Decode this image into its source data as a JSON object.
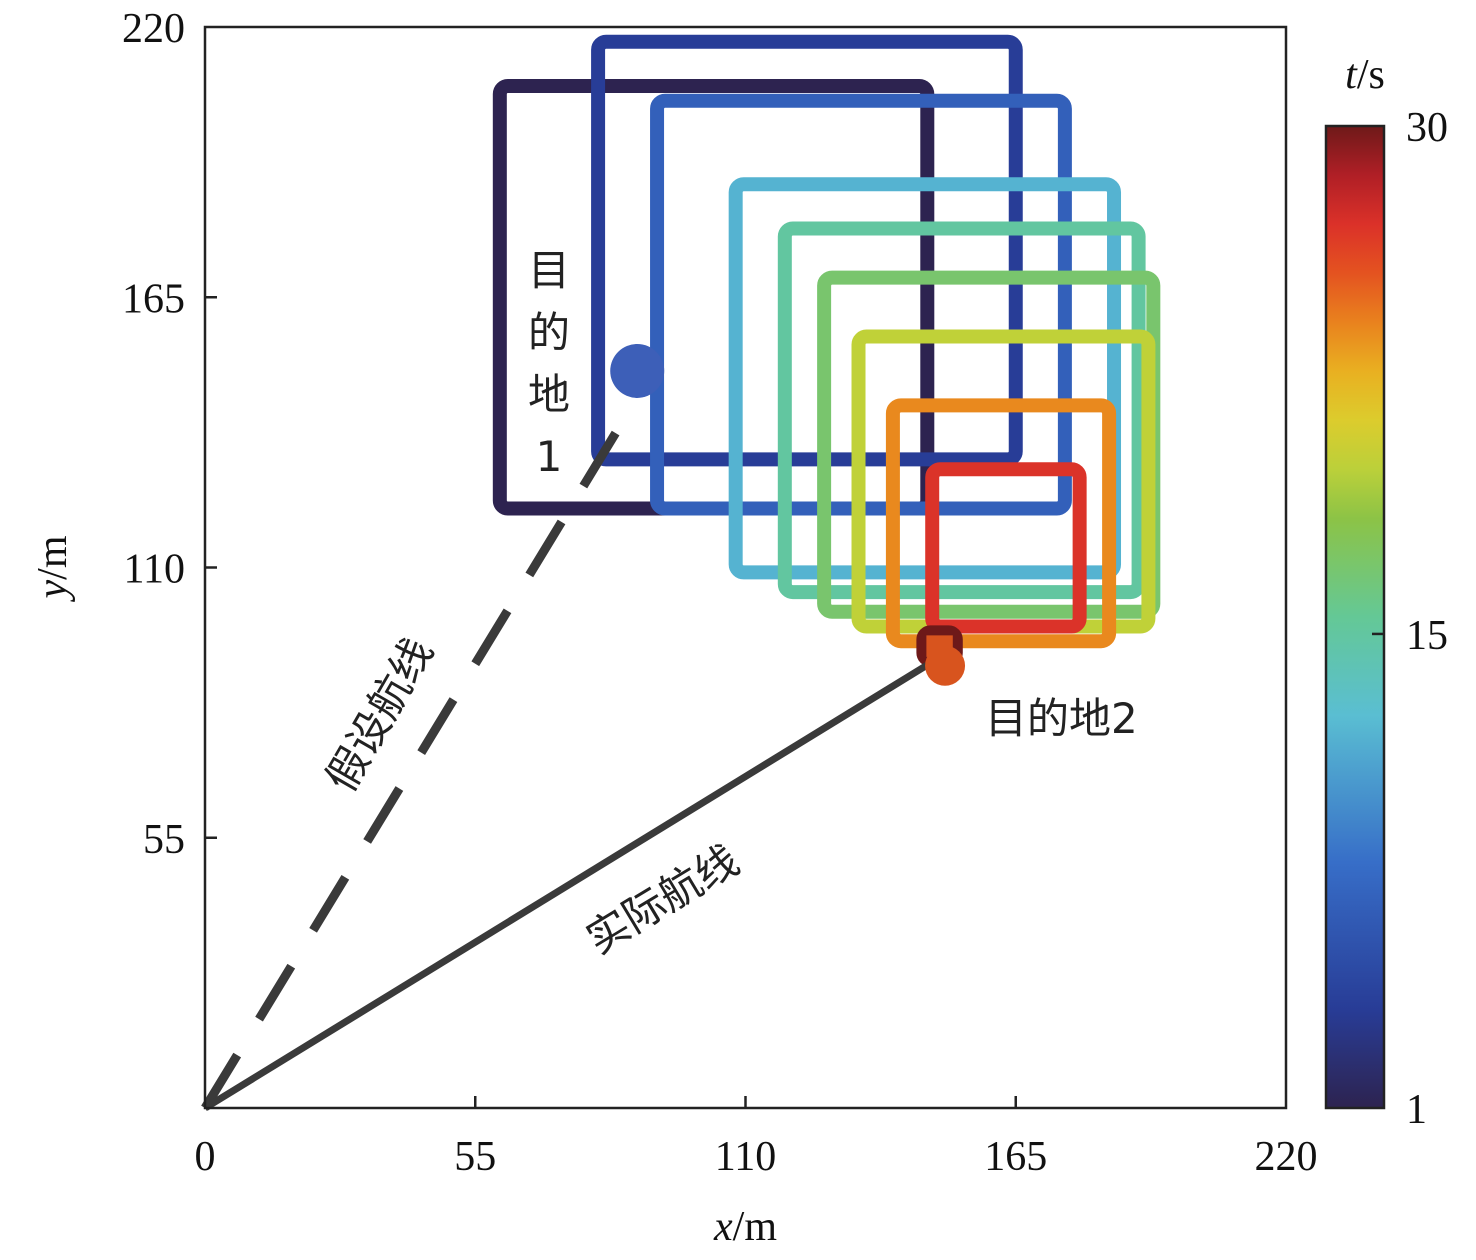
{
  "chart_data": {
    "type": "line",
    "xlabel": {
      "var": "x",
      "unit": "/m"
    },
    "ylabel": {
      "var": "y",
      "unit": "/m"
    },
    "xlim": [
      0,
      220
    ],
    "ylim": [
      0,
      220
    ],
    "xticks": [
      0,
      55,
      110,
      165,
      220
    ],
    "yticks": [
      55,
      110,
      165,
      220
    ],
    "colorbar": {
      "label": {
        "var": "t",
        "unit": "/s"
      },
      "range": [
        1,
        30
      ],
      "ticks": [
        1,
        15,
        30
      ],
      "colormap": "jet"
    },
    "assumed_route": {
      "label": "假设航线",
      "style": "dashed",
      "color": "#3a3a3a",
      "points": [
        [
          0,
          0
        ],
        [
          87,
          143
        ]
      ]
    },
    "actual_route": {
      "label": "实际航线",
      "style": "solid",
      "color": "#3a3a3a",
      "points": [
        [
          0,
          0
        ],
        [
          150,
          92
        ]
      ]
    },
    "destination1": {
      "label_chars": [
        "目",
        "的",
        "地",
        "1"
      ],
      "x": 90,
      "y": 150,
      "color": "#3d5fb8"
    },
    "destination2": {
      "label": "目的地2",
      "x": 150,
      "y": 90,
      "color": "#d8541e"
    },
    "boxes": [
      {
        "t": 1,
        "x0": 60,
        "x1": 147,
        "y0": 122,
        "y1": 208
      },
      {
        "t": 4,
        "x0": 80,
        "x1": 165,
        "y0": 132,
        "y1": 217
      },
      {
        "t": 7,
        "x0": 92,
        "x1": 175,
        "y0": 122,
        "y1": 205
      },
      {
        "t": 12,
        "x0": 108,
        "x1": 185,
        "y0": 109,
        "y1": 188
      },
      {
        "t": 15,
        "x0": 118,
        "x1": 190,
        "y0": 105,
        "y1": 179
      },
      {
        "t": 17,
        "x0": 126,
        "x1": 193,
        "y0": 101,
        "y1": 169
      },
      {
        "t": 20,
        "x0": 133,
        "x1": 192,
        "y0": 98,
        "y1": 157
      },
      {
        "t": 24,
        "x0": 140,
        "x1": 184,
        "y0": 95,
        "y1": 143
      },
      {
        "t": 27,
        "x0": 148,
        "x1": 178,
        "y0": 98,
        "y1": 130
      },
      {
        "t": 30,
        "x0": 146,
        "x1": 153,
        "y0": 91,
        "y1": 97
      }
    ],
    "colors": {
      "axis": "#222222",
      "route": "#3a3a3a"
    }
  }
}
